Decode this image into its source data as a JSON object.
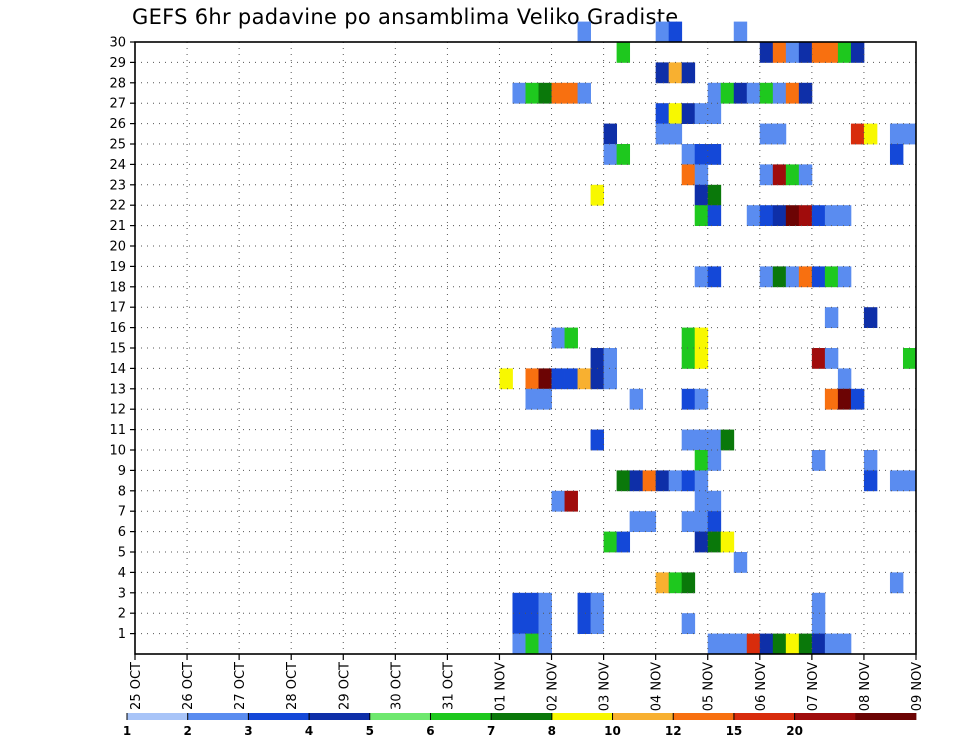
{
  "chart_data": {
    "type": "heatmap",
    "title": "GEFS 6hr padavine po ansamblima Veliko Gradiste",
    "xlabel": "",
    "ylabel": "",
    "x_ticks": [
      "25 OCT",
      "26 OCT",
      "27 OCT",
      "28 OCT",
      "29 OCT",
      "30 OCT",
      "31 OCT",
      "01 NOV",
      "02 NOV",
      "03 NOV",
      "04 NOV",
      "05 NOV",
      "06 NOV",
      "07 NOV",
      "08 NOV",
      "09 NOV"
    ],
    "x_range": [
      0,
      60
    ],
    "x_unit": "6-hour steps from 25 OCT 00Z",
    "y_ticks": [
      1,
      2,
      3,
      4,
      5,
      6,
      7,
      8,
      9,
      10,
      11,
      12,
      13,
      14,
      15,
      16,
      17,
      18,
      19,
      20,
      21,
      22,
      23,
      24,
      25,
      26,
      27,
      28,
      29,
      30
    ],
    "y_range": [
      0,
      30
    ],
    "grid": true,
    "colorbar": {
      "position": "bottom",
      "labels": [
        "1",
        "2",
        "3",
        "4",
        "5",
        "6",
        "7",
        "8",
        "10",
        "12",
        "15",
        "20"
      ],
      "colors": [
        "#a8c4f8",
        "#5a8cf0",
        "#1448d8",
        "#0e2fa8",
        "#6ee86e",
        "#1ec81e",
        "#0a780a",
        "#f8f800",
        "#f8b030",
        "#f87010",
        "#d82c0c",
        "#a00c0c",
        "#6c0404"
      ]
    },
    "cells": [
      [
        34,
        30,
        1
      ],
      [
        40,
        30,
        1
      ],
      [
        41,
        30,
        2
      ],
      [
        46,
        30,
        1
      ],
      [
        37,
        29,
        5
      ],
      [
        48,
        29,
        3
      ],
      [
        49,
        29,
        9
      ],
      [
        50,
        29,
        1
      ],
      [
        51,
        29,
        3
      ],
      [
        52,
        29,
        9
      ],
      [
        53,
        29,
        9
      ],
      [
        54,
        29,
        5
      ],
      [
        55,
        29,
        3
      ],
      [
        40,
        28,
        3
      ],
      [
        41,
        28,
        8
      ],
      [
        42,
        28,
        3
      ],
      [
        29,
        27,
        1
      ],
      [
        30,
        27,
        5
      ],
      [
        31,
        27,
        6
      ],
      [
        32,
        27,
        9
      ],
      [
        33,
        27,
        9
      ],
      [
        34,
        27,
        1
      ],
      [
        44,
        27,
        1
      ],
      [
        45,
        27,
        5
      ],
      [
        46,
        27,
        3
      ],
      [
        47,
        27,
        1
      ],
      [
        48,
        27,
        5
      ],
      [
        49,
        27,
        1
      ],
      [
        50,
        27,
        9
      ],
      [
        51,
        27,
        3
      ],
      [
        40,
        26,
        2
      ],
      [
        41,
        26,
        7
      ],
      [
        42,
        26,
        3
      ],
      [
        43,
        26,
        1
      ],
      [
        44,
        26,
        1
      ],
      [
        36,
        25,
        3
      ],
      [
        40,
        25,
        1
      ],
      [
        41,
        25,
        1
      ],
      [
        48,
        25,
        1
      ],
      [
        49,
        25,
        1
      ],
      [
        55,
        25,
        10
      ],
      [
        56,
        25,
        7
      ],
      [
        58,
        25,
        1
      ],
      [
        59,
        25,
        1
      ],
      [
        36,
        24,
        1
      ],
      [
        37,
        24,
        5
      ],
      [
        42,
        24,
        1
      ],
      [
        43,
        24,
        2
      ],
      [
        44,
        24,
        2
      ],
      [
        58,
        24,
        2
      ],
      [
        42,
        23,
        9
      ],
      [
        43,
        23,
        1
      ],
      [
        48,
        23,
        1
      ],
      [
        49,
        23,
        11
      ],
      [
        50,
        23,
        5
      ],
      [
        51,
        23,
        1
      ],
      [
        35,
        22,
        7
      ],
      [
        43,
        22,
        3
      ],
      [
        44,
        22,
        6
      ],
      [
        43,
        21,
        5
      ],
      [
        44,
        21,
        2
      ],
      [
        47,
        21,
        1
      ],
      [
        48,
        21,
        2
      ],
      [
        49,
        21,
        3
      ],
      [
        50,
        21,
        12
      ],
      [
        51,
        21,
        11
      ],
      [
        52,
        21,
        2
      ],
      [
        53,
        21,
        1
      ],
      [
        54,
        21,
        1
      ],
      [
        43,
        18,
        1
      ],
      [
        44,
        18,
        2
      ],
      [
        48,
        18,
        1
      ],
      [
        49,
        18,
        6
      ],
      [
        50,
        18,
        1
      ],
      [
        51,
        18,
        9
      ],
      [
        52,
        18,
        2
      ],
      [
        53,
        18,
        5
      ],
      [
        54,
        18,
        1
      ],
      [
        53,
        16,
        1
      ],
      [
        56,
        16,
        3
      ],
      [
        32,
        15,
        1
      ],
      [
        33,
        15,
        5
      ],
      [
        42,
        15,
        5
      ],
      [
        43,
        15,
        7
      ],
      [
        35,
        14,
        3
      ],
      [
        36,
        14,
        1
      ],
      [
        42,
        14,
        5
      ],
      [
        43,
        14,
        7
      ],
      [
        52,
        14,
        11
      ],
      [
        53,
        14,
        1
      ],
      [
        59,
        14,
        5
      ],
      [
        28,
        13,
        7
      ],
      [
        30,
        13,
        9
      ],
      [
        31,
        13,
        12
      ],
      [
        32,
        13,
        2
      ],
      [
        33,
        13,
        2
      ],
      [
        34,
        13,
        8
      ],
      [
        35,
        13,
        3
      ],
      [
        36,
        13,
        1
      ],
      [
        54,
        13,
        1
      ],
      [
        30,
        12,
        1
      ],
      [
        31,
        12,
        1
      ],
      [
        38,
        12,
        1
      ],
      [
        42,
        12,
        2
      ],
      [
        43,
        12,
        1
      ],
      [
        53,
        12,
        9
      ],
      [
        54,
        12,
        12
      ],
      [
        55,
        12,
        2
      ],
      [
        35,
        10,
        2
      ],
      [
        42,
        10,
        1
      ],
      [
        43,
        10,
        1
      ],
      [
        44,
        10,
        1
      ],
      [
        45,
        10,
        6
      ],
      [
        43,
        9,
        5
      ],
      [
        44,
        9,
        1
      ],
      [
        52,
        9,
        1
      ],
      [
        56,
        9,
        1
      ],
      [
        37,
        8,
        6
      ],
      [
        38,
        8,
        3
      ],
      [
        39,
        8,
        9
      ],
      [
        40,
        8,
        3
      ],
      [
        41,
        8,
        1
      ],
      [
        42,
        8,
        2
      ],
      [
        43,
        8,
        1
      ],
      [
        56,
        8,
        2
      ],
      [
        58,
        8,
        1
      ],
      [
        59,
        8,
        1
      ],
      [
        32,
        7,
        1
      ],
      [
        33,
        7,
        11
      ],
      [
        43,
        7,
        1
      ],
      [
        44,
        7,
        1
      ],
      [
        38,
        6,
        1
      ],
      [
        39,
        6,
        1
      ],
      [
        42,
        6,
        1
      ],
      [
        43,
        6,
        1
      ],
      [
        44,
        6,
        2
      ],
      [
        36,
        5,
        5
      ],
      [
        37,
        5,
        2
      ],
      [
        43,
        5,
        3
      ],
      [
        44,
        5,
        6
      ],
      [
        45,
        5,
        7
      ],
      [
        46,
        4,
        1
      ],
      [
        40,
        3,
        8
      ],
      [
        41,
        3,
        5
      ],
      [
        42,
        3,
        6
      ],
      [
        58,
        3,
        1
      ],
      [
        29,
        2,
        2
      ],
      [
        30,
        2,
        2
      ],
      [
        31,
        2,
        1
      ],
      [
        34,
        2,
        2
      ],
      [
        35,
        2,
        1
      ],
      [
        52,
        2,
        1
      ],
      [
        29,
        1,
        2
      ],
      [
        30,
        1,
        2
      ],
      [
        31,
        1,
        1
      ],
      [
        34,
        1,
        2
      ],
      [
        35,
        1,
        1
      ],
      [
        42,
        1,
        1
      ],
      [
        52,
        1,
        1
      ],
      [
        29,
        0,
        1
      ],
      [
        30,
        0,
        5
      ],
      [
        31,
        0,
        1
      ],
      [
        44,
        0,
        1
      ],
      [
        45,
        0,
        1
      ],
      [
        46,
        0,
        1
      ],
      [
        47,
        0,
        10
      ],
      [
        48,
        0,
        3
      ],
      [
        49,
        0,
        6
      ],
      [
        50,
        0,
        7
      ],
      [
        51,
        0,
        6
      ],
      [
        52,
        0,
        3
      ],
      [
        53,
        0,
        1
      ],
      [
        54,
        0,
        1
      ]
    ]
  }
}
